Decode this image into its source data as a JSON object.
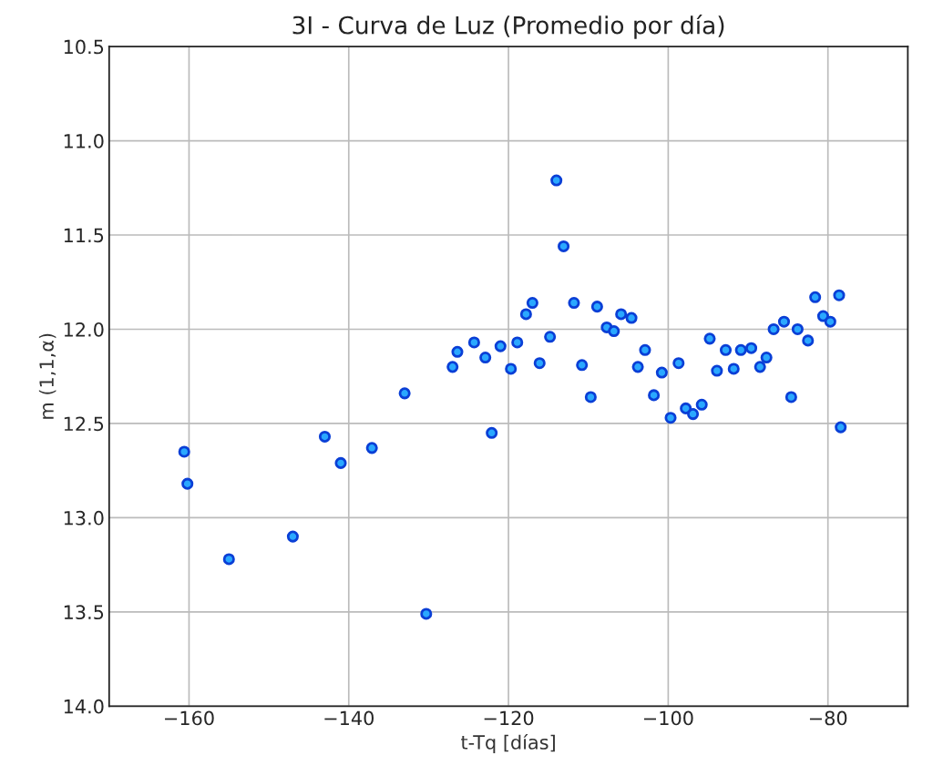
{
  "chart_data": {
    "type": "scatter",
    "title": "3I - Curva de Luz (Promedio por día)",
    "xlabel": "t-Tq [días]",
    "ylabel": "m (1,1,α)",
    "xlim": [
      -170,
      -70
    ],
    "xticks": [
      {
        "value": -160,
        "label": "−160"
      },
      {
        "value": -140,
        "label": "−140"
      },
      {
        "value": -120,
        "label": "−120"
      },
      {
        "value": -100,
        "label": "−100"
      },
      {
        "value": -80,
        "label": "−80"
      }
    ],
    "ylim": [
      14.0,
      10.5
    ],
    "yticks": [
      {
        "value": 10.5,
        "label": "10.5"
      },
      {
        "value": 11.0,
        "label": "11.0"
      },
      {
        "value": 11.5,
        "label": "11.5"
      },
      {
        "value": 12.0,
        "label": "12.0"
      },
      {
        "value": 12.5,
        "label": "12.5"
      },
      {
        "value": 13.0,
        "label": "13.0"
      },
      {
        "value": 13.5,
        "label": "13.5"
      },
      {
        "value": 14.0,
        "label": "14.0"
      }
    ],
    "grid": true,
    "marker": "circle",
    "series": [
      {
        "color": "#2aa8ff",
        "x": [
          -160.6,
          -160.2,
          -155.0,
          -147.0,
          -143.0,
          -141.0,
          -137.1,
          -133.0,
          -130.3,
          -127.0,
          -126.4,
          -124.3,
          -122.9,
          -122.1,
          -121.0,
          -119.7,
          -118.9,
          -117.8,
          -117.0,
          -116.1,
          -114.8,
          -114.0,
          -113.1,
          -111.8,
          -110.8,
          -109.7,
          -108.9,
          -107.7,
          -106.8,
          -105.9,
          -104.6,
          -103.8,
          -102.9,
          -101.8,
          -100.8,
          -99.7,
          -98.7,
          -97.8,
          -96.9,
          -95.8,
          -94.8,
          -93.9,
          -92.8,
          -91.8,
          -90.9,
          -89.6,
          -88.5,
          -87.7,
          -86.8,
          -85.5,
          -84.6,
          -83.8,
          -82.5,
          -81.6,
          -80.6,
          -79.7,
          -78.6,
          -78.4
        ],
        "values": [
          12.65,
          12.82,
          13.22,
          13.1,
          12.57,
          12.71,
          12.63,
          12.34,
          13.51,
          12.2,
          12.12,
          12.07,
          12.15,
          12.55,
          12.09,
          12.21,
          12.07,
          11.92,
          11.86,
          12.18,
          12.04,
          11.21,
          11.56,
          11.86,
          12.19,
          12.36,
          11.88,
          11.99,
          12.01,
          11.92,
          11.94,
          12.2,
          12.11,
          12.35,
          12.23,
          12.47,
          12.18,
          12.42,
          12.45,
          12.4,
          12.05,
          12.22,
          12.11,
          12.21,
          12.11,
          12.1,
          12.2,
          12.15,
          12.0,
          11.96,
          12.36,
          12.0,
          12.06,
          11.83,
          11.93,
          11.96,
          11.82,
          12.52
        ]
      }
    ]
  }
}
